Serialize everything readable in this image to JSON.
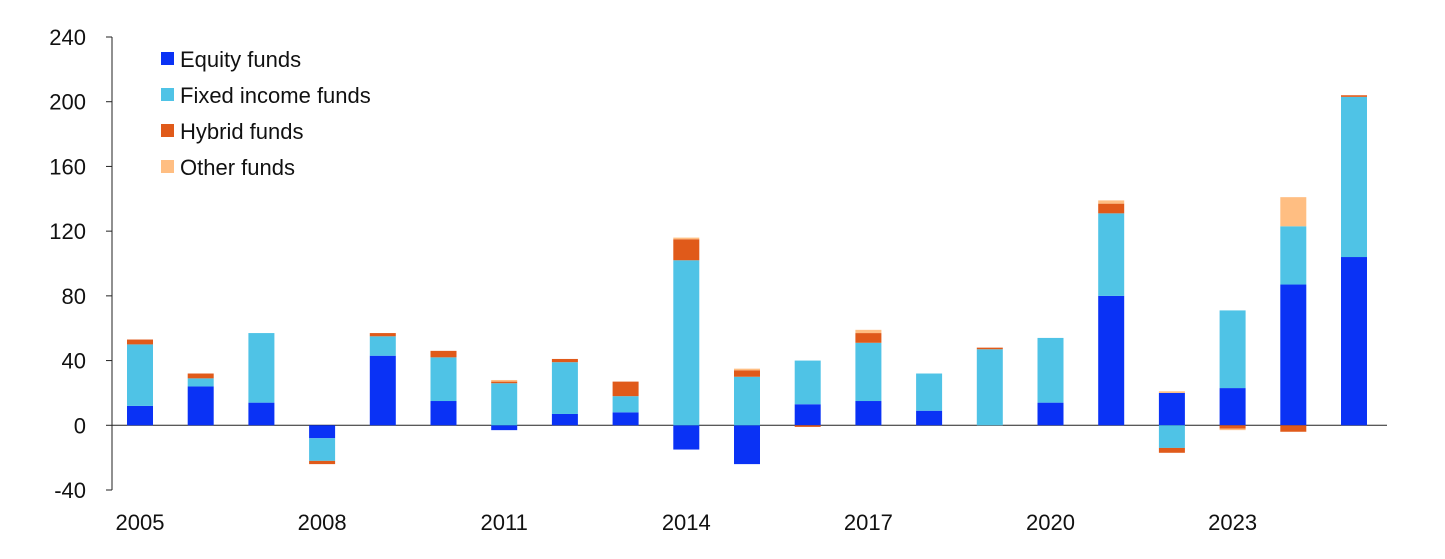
{
  "chart_data": {
    "type": "bar",
    "stacked": true,
    "title": "",
    "xlabel": "",
    "ylabel": "",
    "x": [
      2005,
      2006,
      2007,
      2008,
      2009,
      2010,
      2011,
      2012,
      2013,
      2014,
      2015,
      2016,
      2017,
      2018,
      2019,
      2020,
      2021,
      2022,
      2023,
      2024,
      2025
    ],
    "x_tick_labels": [
      "2005",
      "2008",
      "2011",
      "2014",
      "2017",
      "2020",
      "2023"
    ],
    "y_tick_labels": [
      "240",
      "200",
      "160",
      "120",
      "80",
      "40",
      "0",
      "-40"
    ],
    "ylim": [
      -40,
      240
    ],
    "grid": false,
    "legend_position": "top-left",
    "series": [
      {
        "name": "Equity funds",
        "color": "#0a32f5",
        "values": [
          12,
          24,
          14,
          -8,
          43,
          15,
          -3,
          7,
          8,
          -15,
          -24,
          13,
          15,
          9,
          0,
          14,
          80,
          20,
          23,
          87,
          104
        ]
      },
      {
        "name": "Fixed income funds",
        "color": "#4fc3e6",
        "values": [
          38,
          5,
          43,
          -14,
          12,
          27,
          26,
          32,
          10,
          102,
          30,
          27,
          36,
          23,
          47,
          40,
          51,
          -14,
          48,
          36,
          99
        ]
      },
      {
        "name": "Hybrid funds",
        "color": "#e05a1a",
        "values": [
          3,
          3,
          0,
          -2,
          2,
          4,
          1,
          2,
          9,
          13,
          4,
          -1,
          6,
          0,
          1,
          0,
          6,
          -3,
          -2,
          -4,
          1
        ]
      },
      {
        "name": "Other funds",
        "color": "#ffbe82",
        "values": [
          0,
          0,
          0,
          0,
          0,
          0,
          1,
          0,
          0,
          1,
          1,
          0,
          2,
          0,
          0,
          0,
          2,
          1,
          -1,
          18,
          0
        ]
      }
    ]
  }
}
